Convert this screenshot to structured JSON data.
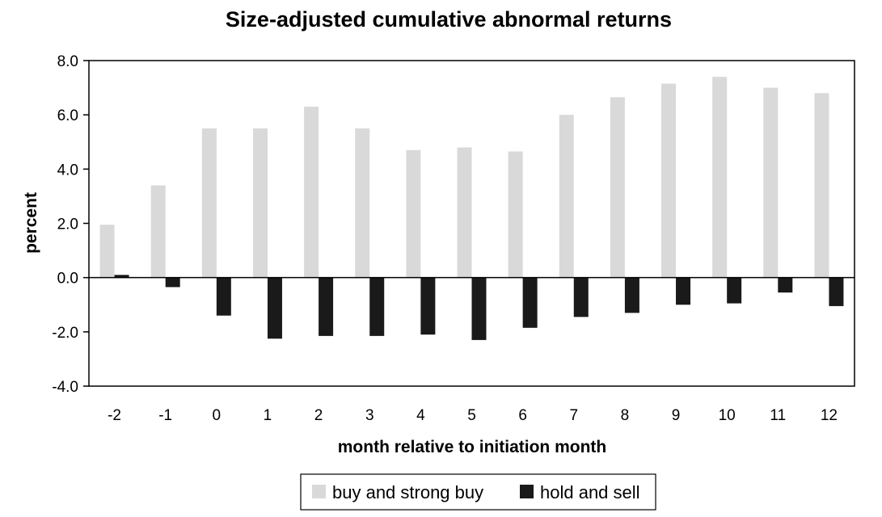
{
  "chart_data": {
    "type": "bar",
    "title": "Size-adjusted cumulative abnormal returns",
    "xlabel": "month relative to initiation month",
    "ylabel": "percent",
    "ylim": [
      -4.0,
      8.0
    ],
    "yticks": [
      "8.0",
      "6.0",
      "4.0",
      "2.0",
      "0.0",
      "-2.0",
      "-4.0"
    ],
    "categories": [
      "-2",
      "-1",
      "0",
      "1",
      "2",
      "3",
      "4",
      "5",
      "6",
      "7",
      "8",
      "9",
      "10",
      "11",
      "12"
    ],
    "series": [
      {
        "name": "buy and strong buy",
        "color": "#d9d9d9",
        "values": [
          1.95,
          3.4,
          5.5,
          5.5,
          6.3,
          5.5,
          4.7,
          4.8,
          4.65,
          6.0,
          6.65,
          7.15,
          7.4,
          7.0,
          6.8
        ]
      },
      {
        "name": "hold and sell",
        "color": "#1a1a1a",
        "values": [
          0.1,
          -0.35,
          -1.4,
          -2.25,
          -2.15,
          -2.15,
          -2.1,
          -2.3,
          -1.85,
          -1.45,
          -1.3,
          -1.0,
          -0.95,
          -0.55,
          -1.05
        ]
      }
    ],
    "grid": false,
    "legend": "bottom"
  }
}
